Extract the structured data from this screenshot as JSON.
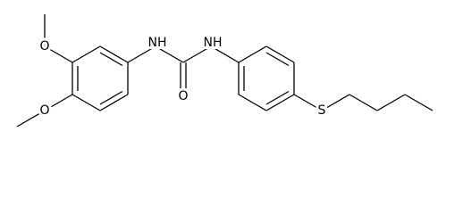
{
  "labels": [
    "O",
    "O",
    "NH",
    "NH",
    "O",
    "S"
  ]
}
